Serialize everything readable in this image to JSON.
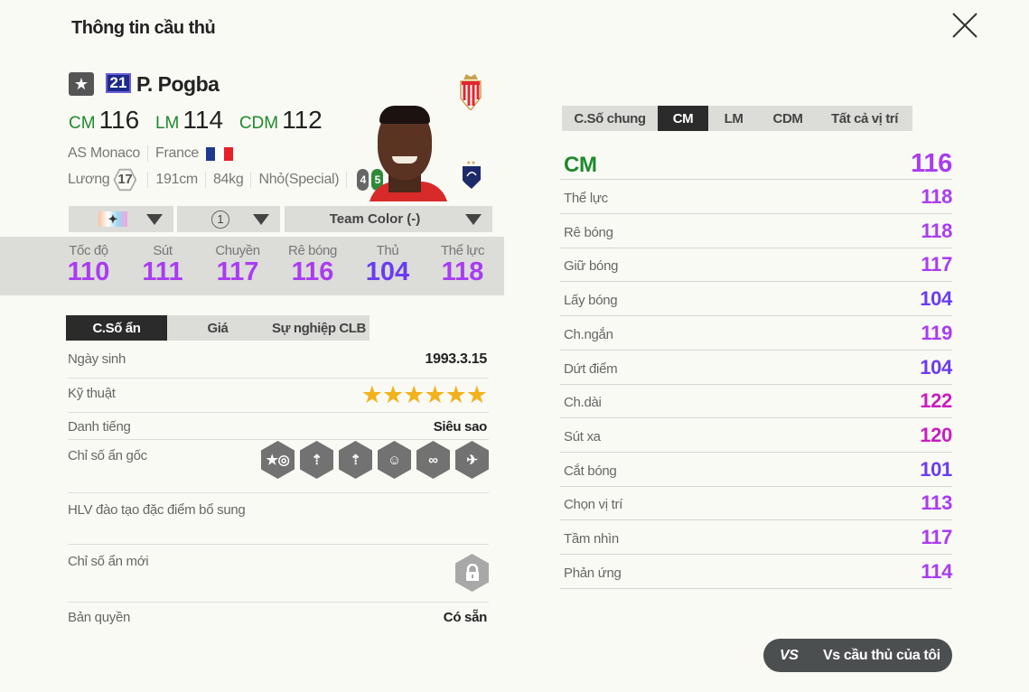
{
  "title": "Thông tin cầu thủ",
  "player": {
    "number": "21",
    "name": "P. Pogba",
    "positions": [
      {
        "pos": "CM",
        "ovr": "116"
      },
      {
        "pos": "LM",
        "ovr": "114"
      },
      {
        "pos": "CDM",
        "ovr": "112"
      }
    ],
    "club": "AS Monaco",
    "nation": "France",
    "salary_label": "Lương",
    "salary": "17",
    "height": "191cm",
    "weight": "84kg",
    "body": "Nhỏ(Special)",
    "weak_foot": "4",
    "strong_foot": "5"
  },
  "dropdowns": {
    "grade": "1",
    "team_color": "Team Color (-)"
  },
  "main_stats": [
    {
      "label": "Tốc độ",
      "value": "110",
      "color": "#a93cf2"
    },
    {
      "label": "Sút",
      "value": "111",
      "color": "#a93cf2"
    },
    {
      "label": "Chuyền",
      "value": "117",
      "color": "#a93cf2"
    },
    {
      "label": "Rê bóng",
      "value": "116",
      "color": "#a93cf2"
    },
    {
      "label": "Thủ",
      "value": "104",
      "color": "#6a3cf0"
    },
    {
      "label": "Thể lực",
      "value": "118",
      "color": "#a93cf2"
    }
  ],
  "left_tabs": [
    "C.Số ẩn",
    "Giá",
    "Sự nghiệp CLB"
  ],
  "details": {
    "birth_label": "Ngày sinh",
    "birth": "1993.3.15",
    "skill_label": "Kỹ thuật",
    "skill_stars": 6,
    "rep_label": "Danh tiếng",
    "rep": "Siêu sao",
    "traits_label": "Chỉ số ẩn gốc",
    "trait_icons": [
      "boot-target-icon",
      "power-header-icon",
      "long-shot-icon",
      "helmet-head-icon",
      "playmaker-route-icon",
      "flair-shot-icon"
    ],
    "coach_label": "HLV đào tạo đặc điểm bổ sung",
    "new_traits_label": "Chỉ số ẩn mới",
    "license_label": "Bản quyền",
    "license": "Có sẵn"
  },
  "right_tabs": [
    "C.Số chung",
    "CM",
    "LM",
    "CDM",
    "Tất cả vị trí"
  ],
  "position_summary": {
    "pos": "CM",
    "value": "116"
  },
  "attributes": [
    {
      "name": "Thể lực",
      "value": "118",
      "color": "#a93cf2"
    },
    {
      "name": "Rê bóng",
      "value": "118",
      "color": "#a93cf2"
    },
    {
      "name": "Giữ bóng",
      "value": "117",
      "color": "#a93cf2"
    },
    {
      "name": "Lấy bóng",
      "value": "104",
      "color": "#6a3cf0"
    },
    {
      "name": "Ch.ngắn",
      "value": "119",
      "color": "#a93cf2"
    },
    {
      "name": "Dứt điểm",
      "value": "104",
      "color": "#6a3cf0"
    },
    {
      "name": "Ch.dài",
      "value": "122",
      "color": "#c81ebf"
    },
    {
      "name": "Sút xa",
      "value": "120",
      "color": "#c81ebf"
    },
    {
      "name": "Cắt bóng",
      "value": "101",
      "color": "#6a3cf0"
    },
    {
      "name": "Chọn vị trí",
      "value": "113",
      "color": "#a93cf2"
    },
    {
      "name": "Tầm nhìn",
      "value": "117",
      "color": "#a93cf2"
    },
    {
      "name": "Phản ứng",
      "value": "114",
      "color": "#a93cf2"
    }
  ],
  "compare_button": {
    "icon": "VS",
    "label": "Vs cầu thủ của tôi"
  },
  "colors": {
    "position_green": "#1f8a2c",
    "stat_purple": "#a93cf2",
    "stat_blue": "#6a3cf0",
    "stat_magenta": "#c81ebf"
  }
}
